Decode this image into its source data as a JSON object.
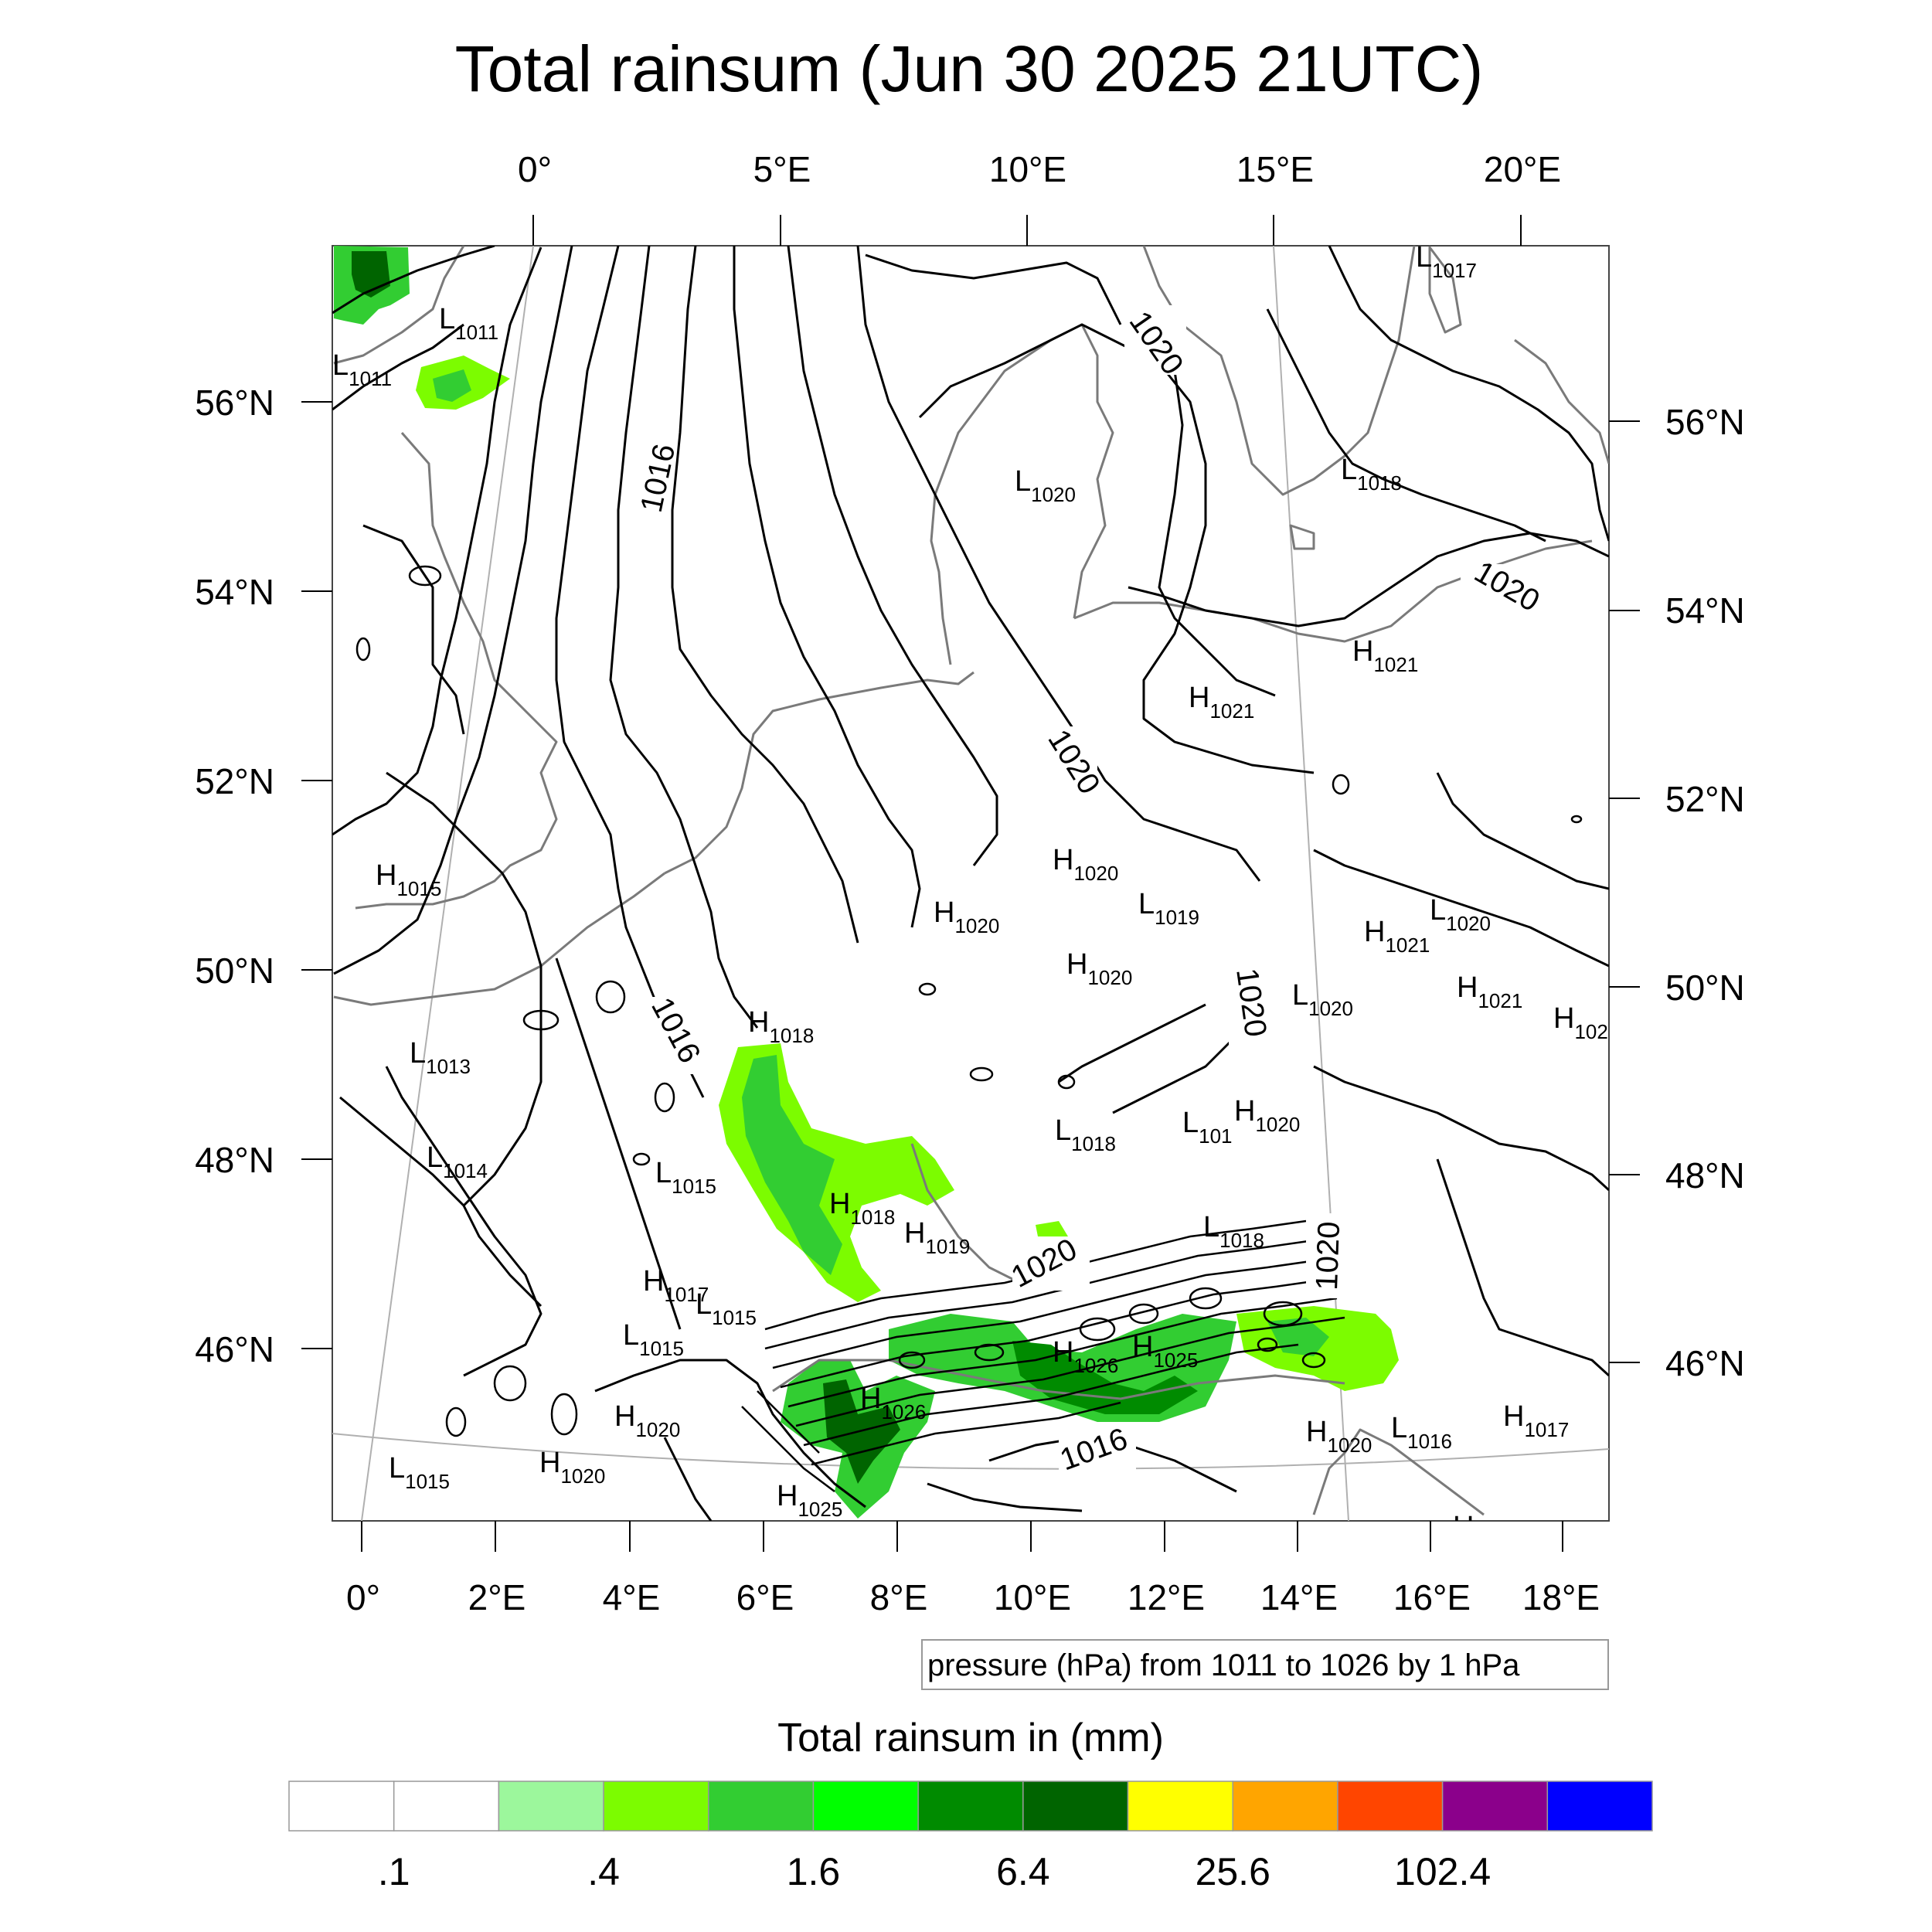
{
  "title": "Total rainsum (Jun 30 2025 21UTC)",
  "axes": {
    "top_lon_labels": [
      "0°",
      "5°E",
      "10°E",
      "15°E",
      "20°E"
    ],
    "bottom_lon_labels": [
      "0°",
      "2°E",
      "4°E",
      "6°E",
      "8°E",
      "10°E",
      "12°E",
      "14°E",
      "16°E",
      "18°E"
    ],
    "left_lat_labels": [
      "56°N",
      "54°N",
      "52°N",
      "50°N",
      "48°N",
      "46°N"
    ],
    "right_lat_labels": [
      "56°N",
      "54°N",
      "52°N",
      "50°N",
      "48°N",
      "46°N"
    ]
  },
  "contour_labels": [
    "1016",
    "1020",
    "1020",
    "1020",
    "1020",
    "1016",
    "1020",
    "1020",
    "1016"
  ],
  "pressure_centers": [
    {
      "type": "L",
      "value": "1011"
    },
    {
      "type": "L",
      "value": "1011"
    },
    {
      "type": "L",
      "value": "1017"
    },
    {
      "type": "L",
      "value": "1020"
    },
    {
      "type": "L",
      "value": "1018"
    },
    {
      "type": "H",
      "value": "1021"
    },
    {
      "type": "H",
      "value": "1021"
    },
    {
      "type": "H",
      "value": "1015"
    },
    {
      "type": "H",
      "value": "1020"
    },
    {
      "type": "L",
      "value": "1019"
    },
    {
      "type": "H",
      "value": "1020"
    },
    {
      "type": "H",
      "value": "1020"
    },
    {
      "type": "L",
      "value": "1020"
    },
    {
      "type": "H",
      "value": "1021"
    },
    {
      "type": "L",
      "value": "1020"
    },
    {
      "type": "H",
      "value": "1021"
    },
    {
      "type": "H",
      "value": "102"
    },
    {
      "type": "L",
      "value": "1013"
    },
    {
      "type": "H",
      "value": "1018"
    },
    {
      "type": "L",
      "value": "1014"
    },
    {
      "type": "L",
      "value": "1015"
    },
    {
      "type": "L",
      "value": "1018"
    },
    {
      "type": "L",
      "value": "101"
    },
    {
      "type": "H",
      "value": "1020"
    },
    {
      "type": "H",
      "value": "1018"
    },
    {
      "type": "H",
      "value": "1019"
    },
    {
      "type": "L",
      "value": "1018"
    },
    {
      "type": "H",
      "value": "1017"
    },
    {
      "type": "L",
      "value": "1015"
    },
    {
      "type": "L",
      "value": "1015"
    },
    {
      "type": "H",
      "value": "1026"
    },
    {
      "type": "H",
      "value": "1025"
    },
    {
      "type": "H",
      "value": "1026"
    },
    {
      "type": "H",
      "value": "1020"
    },
    {
      "type": "H",
      "value": "1020"
    },
    {
      "type": "L",
      "value": "1016"
    },
    {
      "type": "H",
      "value": "1017"
    },
    {
      "type": "L",
      "value": "1015"
    },
    {
      "type": "H",
      "value": "1020"
    },
    {
      "type": "H",
      "value": "1025"
    },
    {
      "type": "H",
      "value": ""
    }
  ],
  "contour_info": "pressure (hPa) from 1011 to 1026 by 1 hPa",
  "colorbar": {
    "title": "Total rainsum in (mm)",
    "colors": [
      "#ffffff",
      "#ffffff",
      "#9cf79c",
      "#7cfc00",
      "#32cd32",
      "#00ff00",
      "#008b00",
      "#006400",
      "#ffff00",
      "#ffa500",
      "#ff4500",
      "#8b008b",
      "#0000ff"
    ],
    "labels": [
      ".1",
      ".4",
      "1.6",
      "6.4",
      "25.6",
      "102.4"
    ]
  }
}
